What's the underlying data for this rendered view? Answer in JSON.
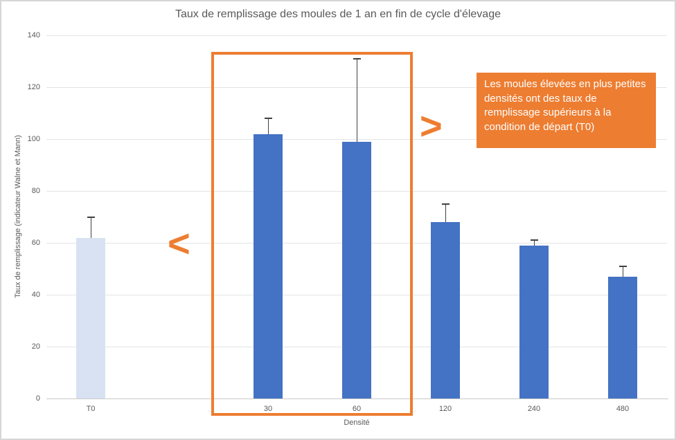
{
  "chart": {
    "title": "Taux de remplissage des moules de 1 an en fin de cycle d'élevage",
    "y_axis_title": "Taux de remplissage (indicateur Walne et Mann)",
    "x_axis_title": "Densité"
  },
  "chart_data": {
    "type": "bar",
    "title": "Taux de remplissage des moules de 1 an en fin de cycle d'élevage",
    "xlabel": "Densité",
    "ylabel": "Taux de remplissage (indicateur Walne et Mann)",
    "categories": [
      "T0",
      "30",
      "60",
      "120",
      "240",
      "480"
    ],
    "values": [
      62,
      102,
      99,
      68,
      59,
      47
    ],
    "error_plus": [
      8,
      6,
      32,
      7,
      2,
      4
    ],
    "slot_index": [
      0,
      2,
      3,
      4,
      5,
      6
    ],
    "num_slots": 7,
    "ylim": [
      0,
      140
    ],
    "ytick_step": 20,
    "grid": true,
    "legend": false,
    "bar_colors": [
      "#d9e2f3",
      "#4472c4",
      "#4472c4",
      "#4472c4",
      "#4472c4",
      "#4472c4"
    ]
  },
  "annotations": {
    "less_symbol": "<",
    "greater_symbol": ">",
    "callout_text": "Les moules élevées en plus petites densités ont des taux de remplissage supérieurs à la condition de départ (T0)"
  },
  "colors": {
    "accent_orange": "#ed7d31",
    "bar_blue": "#4472c4",
    "bar_light_blue": "#d9e2f3",
    "error_bar": "#404040",
    "gridline": "#e4e4e4",
    "axis_line": "#c9c9c9",
    "text_gray": "#595959"
  }
}
